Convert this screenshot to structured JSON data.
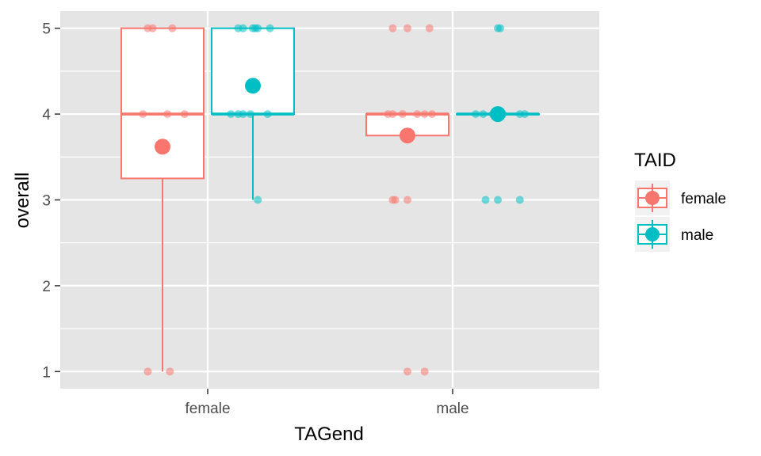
{
  "chart_data": {
    "type": "boxplot",
    "xlabel": "TAGend",
    "ylabel": "overall",
    "categories": [
      "female",
      "male"
    ],
    "ylim": [
      0.8,
      5.2
    ],
    "y_ticks": [
      1,
      2,
      3,
      4,
      5
    ],
    "grid": true,
    "legend": {
      "title": "TAID",
      "position": "right",
      "entries": [
        {
          "label": "female",
          "color": "#F8766D"
        },
        {
          "label": "male",
          "color": "#00BFC4"
        }
      ]
    },
    "series": [
      {
        "name": "female",
        "color": "#F8766D",
        "boxes": [
          {
            "category": "female",
            "min": 1,
            "q1": 3.25,
            "median": 4,
            "q3": 5,
            "max": 5,
            "mean": 3.62,
            "points": [
              {
                "dx": -0.06,
                "y": 5
              },
              {
                "dx": -0.04,
                "y": 5
              },
              {
                "dx": 0.04,
                "y": 5
              },
              {
                "dx": -0.08,
                "y": 4
              },
              {
                "dx": 0.02,
                "y": 4
              },
              {
                "dx": 0.09,
                "y": 4
              },
              {
                "dx": -0.06,
                "y": 1
              },
              {
                "dx": 0.03,
                "y": 1
              }
            ]
          },
          {
            "category": "male",
            "min": 3.75,
            "q1": 3.75,
            "median": 4,
            "q3": 4,
            "max": 4,
            "mean": 3.75,
            "points": [
              {
                "dx": -0.06,
                "y": 5
              },
              {
                "dx": 0.0,
                "y": 5
              },
              {
                "dx": 0.09,
                "y": 5
              },
              {
                "dx": -0.08,
                "y": 4
              },
              {
                "dx": -0.06,
                "y": 4
              },
              {
                "dx": -0.02,
                "y": 4
              },
              {
                "dx": 0.04,
                "y": 4
              },
              {
                "dx": 0.07,
                "y": 4
              },
              {
                "dx": 0.1,
                "y": 4
              },
              {
                "dx": -0.06,
                "y": 3
              },
              {
                "dx": -0.05,
                "y": 3
              },
              {
                "dx": 0.0,
                "y": 3
              },
              {
                "dx": 0.0,
                "y": 1
              },
              {
                "dx": 0.07,
                "y": 1
              }
            ]
          }
        ]
      },
      {
        "name": "male",
        "color": "#00BFC4",
        "boxes": [
          {
            "category": "female",
            "min": 3,
            "q1": 4,
            "median": 4,
            "q3": 5,
            "max": 5,
            "mean": 4.33,
            "points": [
              {
                "dx": -0.06,
                "y": 5
              },
              {
                "dx": -0.04,
                "y": 5
              },
              {
                "dx": 0.0,
                "y": 5
              },
              {
                "dx": 0.01,
                "y": 5
              },
              {
                "dx": 0.02,
                "y": 5
              },
              {
                "dx": 0.07,
                "y": 5
              },
              {
                "dx": -0.09,
                "y": 4
              },
              {
                "dx": -0.06,
                "y": 4
              },
              {
                "dx": -0.04,
                "y": 4
              },
              {
                "dx": -0.01,
                "y": 4
              },
              {
                "dx": 0.06,
                "y": 4
              },
              {
                "dx": 0.02,
                "y": 3
              }
            ]
          },
          {
            "category": "male",
            "min": 4,
            "q1": 4,
            "median": 4,
            "q3": 4,
            "max": 4,
            "mean": 4.0,
            "points": [
              {
                "dx": 0.0,
                "y": 5
              },
              {
                "dx": 0.01,
                "y": 5
              },
              {
                "dx": -0.09,
                "y": 4
              },
              {
                "dx": -0.06,
                "y": 4
              },
              {
                "dx": -0.02,
                "y": 4
              },
              {
                "dx": 0.02,
                "y": 4
              },
              {
                "dx": 0.09,
                "y": 4
              },
              {
                "dx": 0.11,
                "y": 4
              },
              {
                "dx": -0.05,
                "y": 3
              },
              {
                "dx": 0.0,
                "y": 3
              },
              {
                "dx": 0.09,
                "y": 3
              }
            ]
          }
        ]
      }
    ]
  }
}
